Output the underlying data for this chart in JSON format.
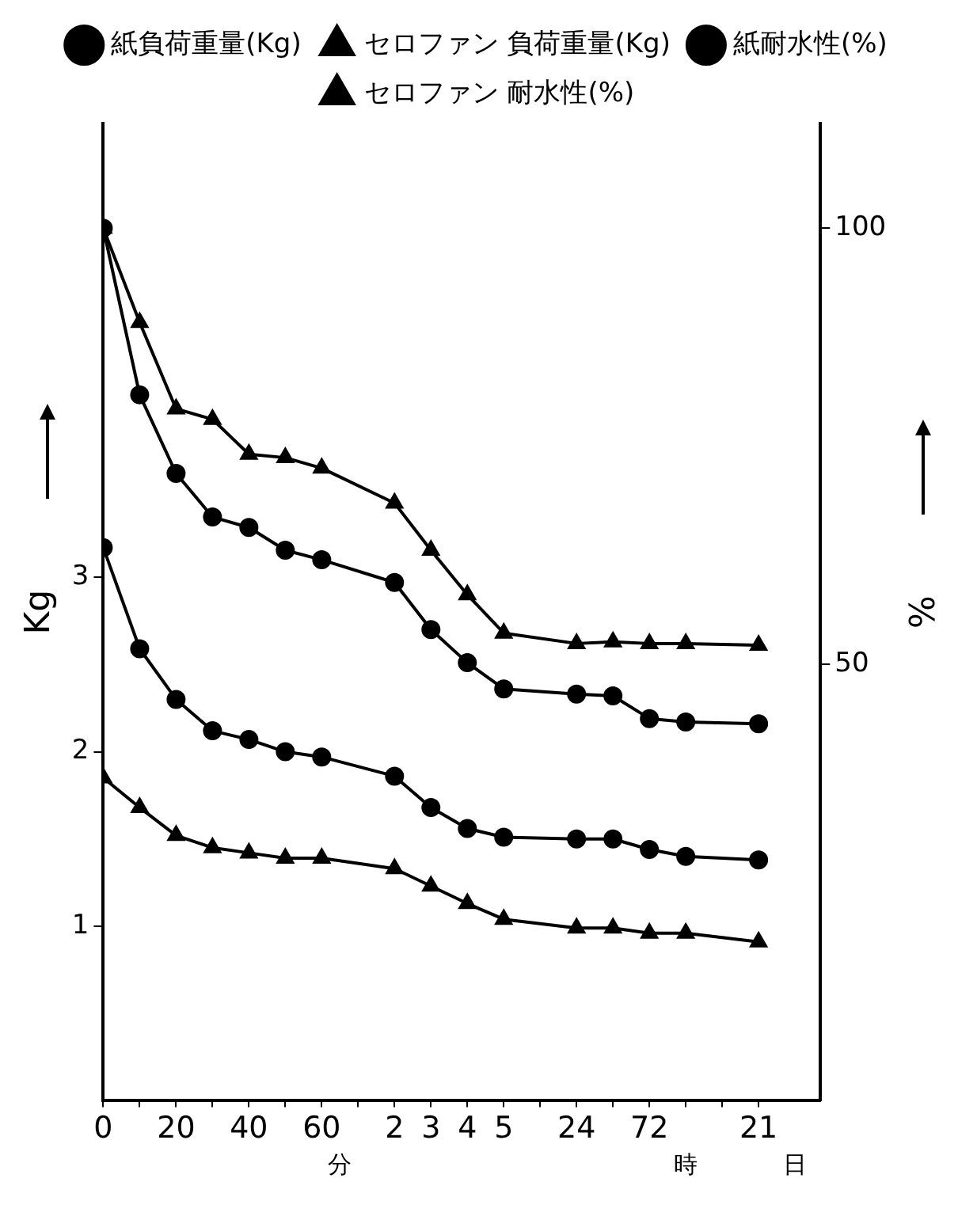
{
  "chart_data": {
    "type": "line",
    "categories": [
      "0",
      null,
      "20",
      null,
      "40",
      null,
      "60",
      null,
      "2",
      "3",
      "4",
      "5",
      null,
      "24",
      null,
      "72",
      null,
      null,
      "21"
    ],
    "series": [
      {
        "name": "紙負荷重量(Kg)",
        "color": "#000000",
        "marker": "circle",
        "values": [
          3.17,
          2.59,
          2.3,
          2.12,
          2.07,
          2.0,
          1.97,
          null,
          1.86,
          1.68,
          1.56,
          1.51,
          null,
          1.5,
          1.5,
          1.44,
          1.4,
          null,
          1.38
        ]
      },
      {
        "name": "セロファン 負荷重量(Kg)",
        "color": "#000000",
        "marker": "triangle",
        "values": [
          1.85,
          1.68,
          1.52,
          1.45,
          1.42,
          1.39,
          1.39,
          null,
          1.33,
          1.23,
          1.13,
          1.04,
          null,
          0.99,
          0.99,
          0.96,
          0.96,
          null,
          0.91
        ]
      },
      {
        "name": "紙耐水性(%)",
        "color": "#000000",
        "marker": "circle",
        "axis": "y2",
        "values": [
          100,
          80.9,
          71.9,
          66.9,
          65.7,
          63.1,
          62.0,
          null,
          59.4,
          54.0,
          50.2,
          47.2,
          null,
          46.6,
          46.4,
          43.8,
          43.4,
          null,
          43.2
        ]
      },
      {
        "name": "セロファン 耐水性(%)",
        "color": "#000000",
        "marker": "triangle",
        "axis": "y2",
        "values": [
          100,
          89.2,
          79.3,
          78.1,
          74.1,
          73.7,
          72.5,
          null,
          68.5,
          63.1,
          58.0,
          53.6,
          null,
          52.4,
          52.6,
          52.4,
          52.4,
          null,
          52.2
        ]
      }
    ],
    "ylabel": "Kg",
    "y2label": "%",
    "ylim": [
      0,
      5.6
    ],
    "yticks": [
      1,
      2,
      3
    ],
    "y2lim": [
      0,
      112
    ],
    "y2ticks": [
      50,
      100
    ],
    "annotations": [
      "分",
      "時",
      "日"
    ],
    "legend": "top",
    "grid": false,
    "line_style": "solid"
  }
}
